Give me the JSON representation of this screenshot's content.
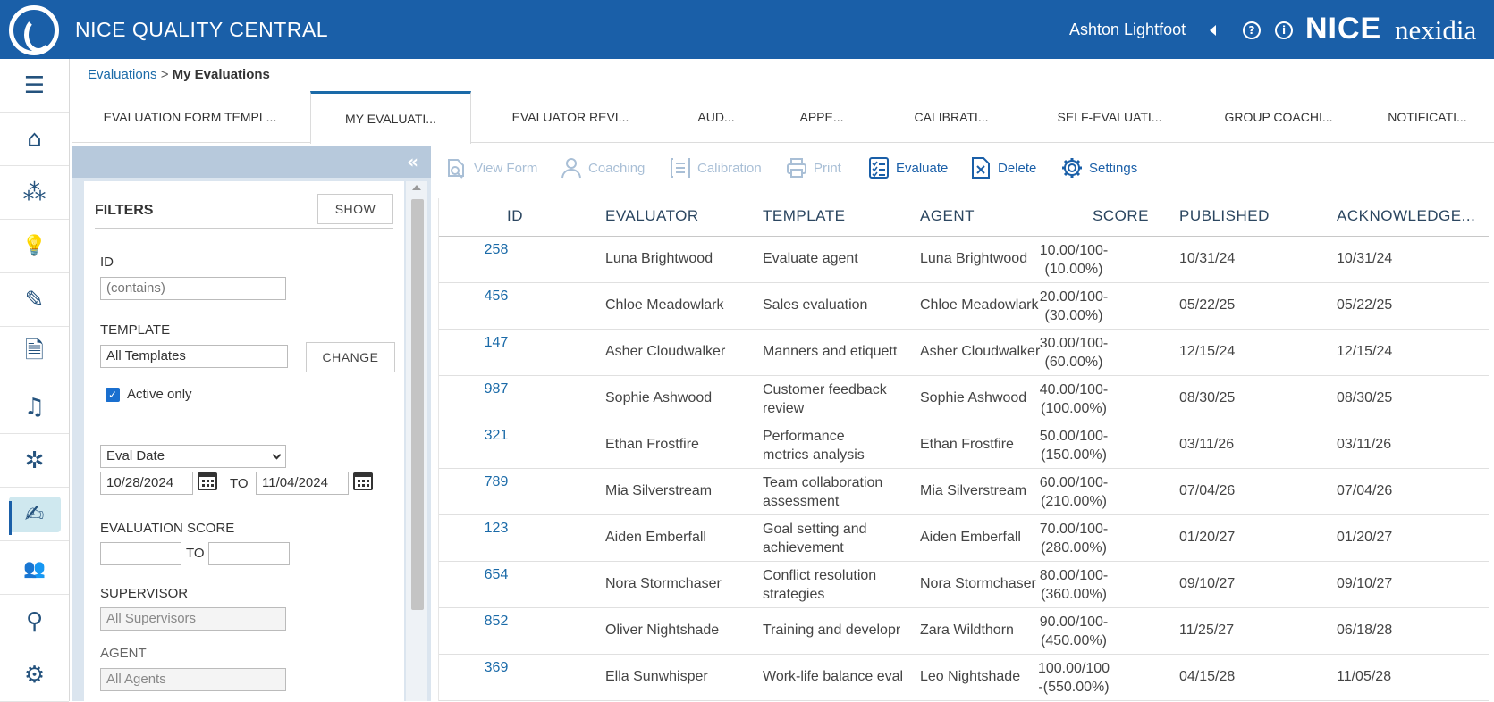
{
  "app": {
    "title": "NICE QUALITY CENTRAL",
    "user": "Ashton Lightfoot",
    "brand_nice": "NICE",
    "brand_nexidia": "nexidia",
    "help_icon_glyph": "?",
    "info_icon_glyph": "i",
    "accent_color": "#1a5fa8"
  },
  "nav": {
    "items": [
      {
        "icon": "menu-icon",
        "glyph": "☰"
      },
      {
        "icon": "home-icon",
        "glyph": "⌂"
      },
      {
        "icon": "network-icon",
        "glyph": "⁂"
      },
      {
        "icon": "lightbulb-icon",
        "glyph": "💡"
      },
      {
        "icon": "edit-form-icon",
        "glyph": "✎"
      },
      {
        "icon": "document-search-icon",
        "glyph": "🗎"
      },
      {
        "icon": "playlist-icon",
        "glyph": "♫"
      },
      {
        "icon": "interactions-icon",
        "glyph": "✲"
      },
      {
        "icon": "evaluations-icon",
        "glyph": "✍"
      },
      {
        "icon": "coaching-users-icon",
        "glyph": "👥"
      },
      {
        "icon": "search-icon",
        "glyph": "⚲"
      },
      {
        "icon": "user-settings-icon",
        "glyph": "⚙"
      }
    ],
    "active_index": 8
  },
  "breadcrumb": {
    "parent": "Evaluations",
    "separator": " > ",
    "current": "My Evaluations"
  },
  "tabs": [
    {
      "label": "EVALUATION FORM TEMPL..."
    },
    {
      "label": "MY EVALUATI..."
    },
    {
      "label": "EVALUATOR REVI..."
    },
    {
      "label": "AUD..."
    },
    {
      "label": "APPE..."
    },
    {
      "label": "CALIBRATI..."
    },
    {
      "label": "SELF-EVALUATI..."
    },
    {
      "label": "GROUP COACHI..."
    },
    {
      "label": "NOTIFICATI..."
    }
  ],
  "filters": {
    "collapse_glyph": "«",
    "title": "FILTERS",
    "show_label": "SHOW",
    "id_label": "ID",
    "id_placeholder": "(contains)",
    "template_label": "TEMPLATE",
    "template_value": "All Templates",
    "change_label": "CHANGE",
    "active_only_label": "Active only",
    "active_only_checked": true,
    "checkmark": "✓",
    "date_field": "Eval Date",
    "date_from": "10/28/2024",
    "date_to_label": "TO",
    "date_to": "11/04/2024",
    "score_label": "EVALUATION SCORE",
    "score_to_label": "TO",
    "supervisor_label": "SUPERVISOR",
    "supervisor_value": "All Supervisors",
    "agent_label": "AGENT",
    "agent_value": "All Agents"
  },
  "toolbar": {
    "view_form": "View Form",
    "coaching": "Coaching",
    "calibration": "Calibration",
    "print": "Print",
    "evaluate": "Evaluate",
    "delete": "Delete",
    "settings": "Settings"
  },
  "table": {
    "columns": [
      "ID",
      "EVALUATOR",
      "TEMPLATE",
      "AGENT",
      "SCORE",
      "PUBLISHED",
      "ACKNOWLEDGE..."
    ],
    "rows": [
      {
        "id": "258",
        "evaluator": "Luna Brightwood",
        "template_1": "Evaluate agent",
        "template_2": "",
        "agent": "Luna Brightwood",
        "score_1": "10.00/100-",
        "score_2": "(10.00%)",
        "published": "10/31/24",
        "ack": "10/31/24"
      },
      {
        "id": "456",
        "evaluator": "Chloe Meadowlark",
        "template_1": "Sales evaluation",
        "template_2": "",
        "agent": "Chloe Meadowlark",
        "score_1": "20.00/100-",
        "score_2": "(30.00%)",
        "published": "05/22/25",
        "ack": "05/22/25"
      },
      {
        "id": "147",
        "evaluator": "Asher Cloudwalker",
        "template_1": "Manners and etiquett",
        "template_2": "",
        "agent": "Asher Cloudwalker",
        "score_1": "30.00/100-",
        "score_2": "(60.00%)",
        "published": "12/15/24",
        "ack": "12/15/24"
      },
      {
        "id": "987",
        "evaluator": "Sophie Ashwood",
        "template_1": "Customer feedback",
        "template_2": "review",
        "agent": "Sophie Ashwood",
        "score_1": "40.00/100-",
        "score_2": "(100.00%)",
        "published": "08/30/25",
        "ack": "08/30/25"
      },
      {
        "id": "321",
        "evaluator": "Ethan Frostfire",
        "template_1": "Performance",
        "template_2": "metrics analysis",
        "agent": "Ethan Frostfire",
        "score_1": "50.00/100-",
        "score_2": "(150.00%)",
        "published": "03/11/26",
        "ack": "03/11/26"
      },
      {
        "id": "789",
        "evaluator": "Mia Silverstream",
        "template_1": "Team collaboration",
        "template_2": "assessment",
        "agent": "Mia Silverstream",
        "score_1": "60.00/100-",
        "score_2": "(210.00%)",
        "published": "07/04/26",
        "ack": "07/04/26"
      },
      {
        "id": "123",
        "evaluator": "Aiden Emberfall",
        "template_1": "Goal setting and",
        "template_2": "achievement",
        "agent": "Aiden Emberfall",
        "score_1": "70.00/100-",
        "score_2": "(280.00%)",
        "published": "01/20/27",
        "ack": "01/20/27"
      },
      {
        "id": "654",
        "evaluator": "Nora Stormchaser",
        "template_1": "Conflict resolution",
        "template_2": "strategies",
        "agent": "Nora Stormchaser",
        "score_1": "80.00/100-",
        "score_2": "(360.00%)",
        "published": "09/10/27",
        "ack": "09/10/27"
      },
      {
        "id": "852",
        "evaluator": "Oliver Nightshade",
        "template_1": "Training and developr",
        "template_2": "",
        "agent": "Zara Wildthorn",
        "score_1": "90.00/100-",
        "score_2": "(450.00%)",
        "published": "11/25/27",
        "ack": "06/18/28"
      },
      {
        "id": "369",
        "evaluator": "Ella Sunwhisper",
        "template_1": "Work-life balance eval",
        "template_2": "",
        "agent": "Leo Nightshade",
        "score_1": "100.00/100",
        "score_2": "-(550.00%)",
        "published": "04/15/28",
        "ack": "11/05/28"
      }
    ]
  }
}
